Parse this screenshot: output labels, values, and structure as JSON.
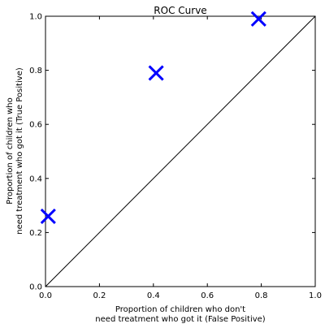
{
  "chart_data": {
    "type": "scatter",
    "title": "ROC Curve",
    "xlabel": [
      "Proportion of children who don't",
      "need treatment who got it (False Positive)"
    ],
    "ylabel": [
      "Proportion of children who",
      "need treatment who got it (True Positive)"
    ],
    "xlim": [
      0.0,
      1.0
    ],
    "ylim": [
      0.0,
      1.0
    ],
    "xticks": [
      0.0,
      0.2,
      0.4,
      0.6,
      0.8,
      1.0
    ],
    "yticks": [
      0.0,
      0.2,
      0.4,
      0.6,
      0.8,
      1.0
    ],
    "xtick_labels": [
      "0.0",
      "0.2",
      "0.4",
      "0.6",
      "0.8",
      "1.0"
    ],
    "ytick_labels": [
      "0.0",
      "0.2",
      "0.4",
      "0.6",
      "0.8",
      "1.0"
    ],
    "grid": false,
    "series": [
      {
        "marker": "x",
        "color": "#0000ff",
        "x": [
          0.01,
          0.41,
          0.79
        ],
        "y": [
          0.26,
          0.79,
          0.99
        ]
      }
    ],
    "reference_line": {
      "x": [
        0.0,
        1.0
      ],
      "y": [
        0.0,
        1.0
      ],
      "color": "#000000"
    }
  }
}
